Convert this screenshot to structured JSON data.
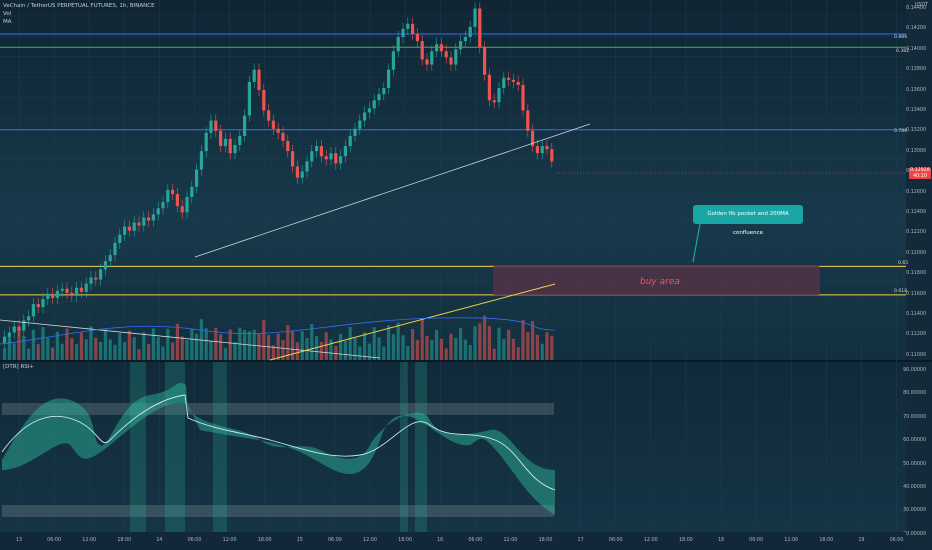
{
  "header": {
    "symbol": "VeChain / TetherUS PERPETUAL FUTURES, 1h, BINANCE",
    "vol": "Vol",
    "ma": "MA"
  },
  "price_axis": {
    "unit": "USDT",
    "ticks": [
      "0.14400",
      "0.14200",
      "0.14000",
      "0.13800",
      "0.13600",
      "0.13400",
      "0.13200",
      "0.13000",
      "0.12800",
      "0.12600",
      "0.12400",
      "0.12200",
      "0.12000",
      "0.11800",
      "0.11600",
      "0.11400",
      "0.11200",
      "0.11000"
    ]
  },
  "current_price": {
    "value": "0.12928",
    "countdown": "40:10"
  },
  "fib_labels": [
    {
      "text": "0.886",
      "color": "#3a6cf4"
    },
    {
      "text": "0.382",
      "color": "#4caf50"
    },
    {
      "text": "0.786",
      "color": "#3a6cf4"
    },
    {
      "text": "0.65",
      "color": "#f5d142"
    },
    {
      "text": "0.618",
      "color": "#f5d142"
    }
  ],
  "annotations": {
    "callout": "Golden fib pocket and 200MA confluence",
    "buy_area": "buy area"
  },
  "rsi": {
    "label": "[DTR] RSI+",
    "ticks": [
      "90.00000",
      "80.00000",
      "70.00000",
      "60.00000",
      "50.00000",
      "40.00000",
      "30.00000",
      "20.00000"
    ]
  },
  "time_axis": {
    "ticks": [
      "13",
      "06:00",
      "12:00",
      "18:00",
      "14",
      "06:00",
      "12:00",
      "18:00",
      "15",
      "06:00",
      "12:00",
      "18:00",
      "16",
      "06:00",
      "12:00",
      "18:00",
      "17",
      "06:00",
      "12:00",
      "18:00",
      "18",
      "06:00",
      "12:00",
      "18:00",
      "19",
      "06:00"
    ]
  },
  "colors": {
    "up": "#26a69a",
    "down": "#ef5350",
    "background": "#132a3a",
    "fib_blue": "#3a6cf4",
    "fib_green": "#4caf50",
    "fib_yellow": "#f5d142",
    "buy_area": "#5a3146"
  }
}
